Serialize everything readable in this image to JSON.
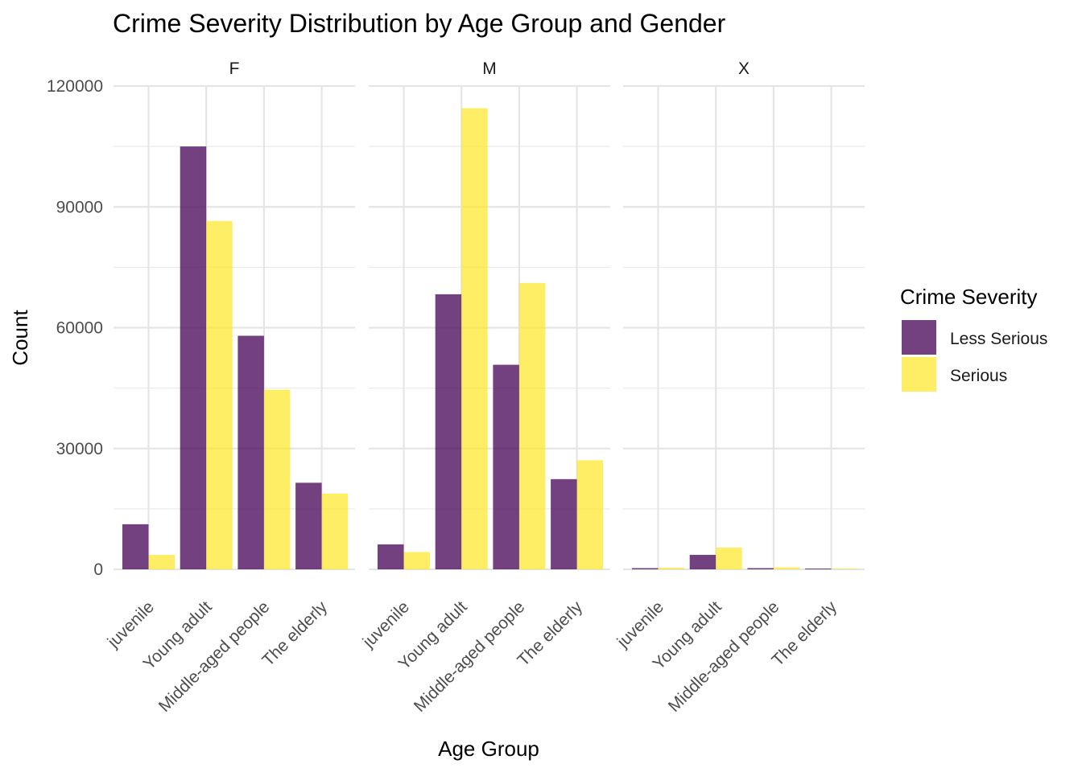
{
  "chart_data": {
    "type": "bar",
    "title": "Crime Severity Distribution by Age Group and Gender",
    "xlabel": "Age Group",
    "ylabel": "Count",
    "ylim": [
      0,
      120000
    ],
    "yticks": [
      "0",
      "30000",
      "60000",
      "90000",
      "120000"
    ],
    "categories": [
      "juvenile",
      "Young adult",
      "Middle-aged people",
      "The elderly"
    ],
    "legend": {
      "title": "Crime Severity",
      "position": "right",
      "entries": [
        {
          "label": "Less Serious",
          "color": "#440154"
        },
        {
          "label": "Serious",
          "color": "#FDE725"
        }
      ]
    },
    "grid": true,
    "facets": [
      {
        "label": "F",
        "series": [
          {
            "name": "Less Serious",
            "values": [
              11200,
              105000,
              58000,
              21500
            ]
          },
          {
            "name": "Serious",
            "values": [
              3600,
              86500,
              44600,
              18800
            ]
          }
        ]
      },
      {
        "label": "M",
        "series": [
          {
            "name": "Less Serious",
            "values": [
              6200,
              68300,
              50800,
              22400
            ]
          },
          {
            "name": "Serious",
            "values": [
              4300,
              114500,
              71100,
              27100
            ]
          }
        ]
      },
      {
        "label": "X",
        "series": [
          {
            "name": "Less Serious",
            "values": [
              300,
              3600,
              300,
              200
            ]
          },
          {
            "name": "Serious",
            "values": [
              400,
              5400,
              500,
              200
            ]
          }
        ]
      }
    ]
  }
}
